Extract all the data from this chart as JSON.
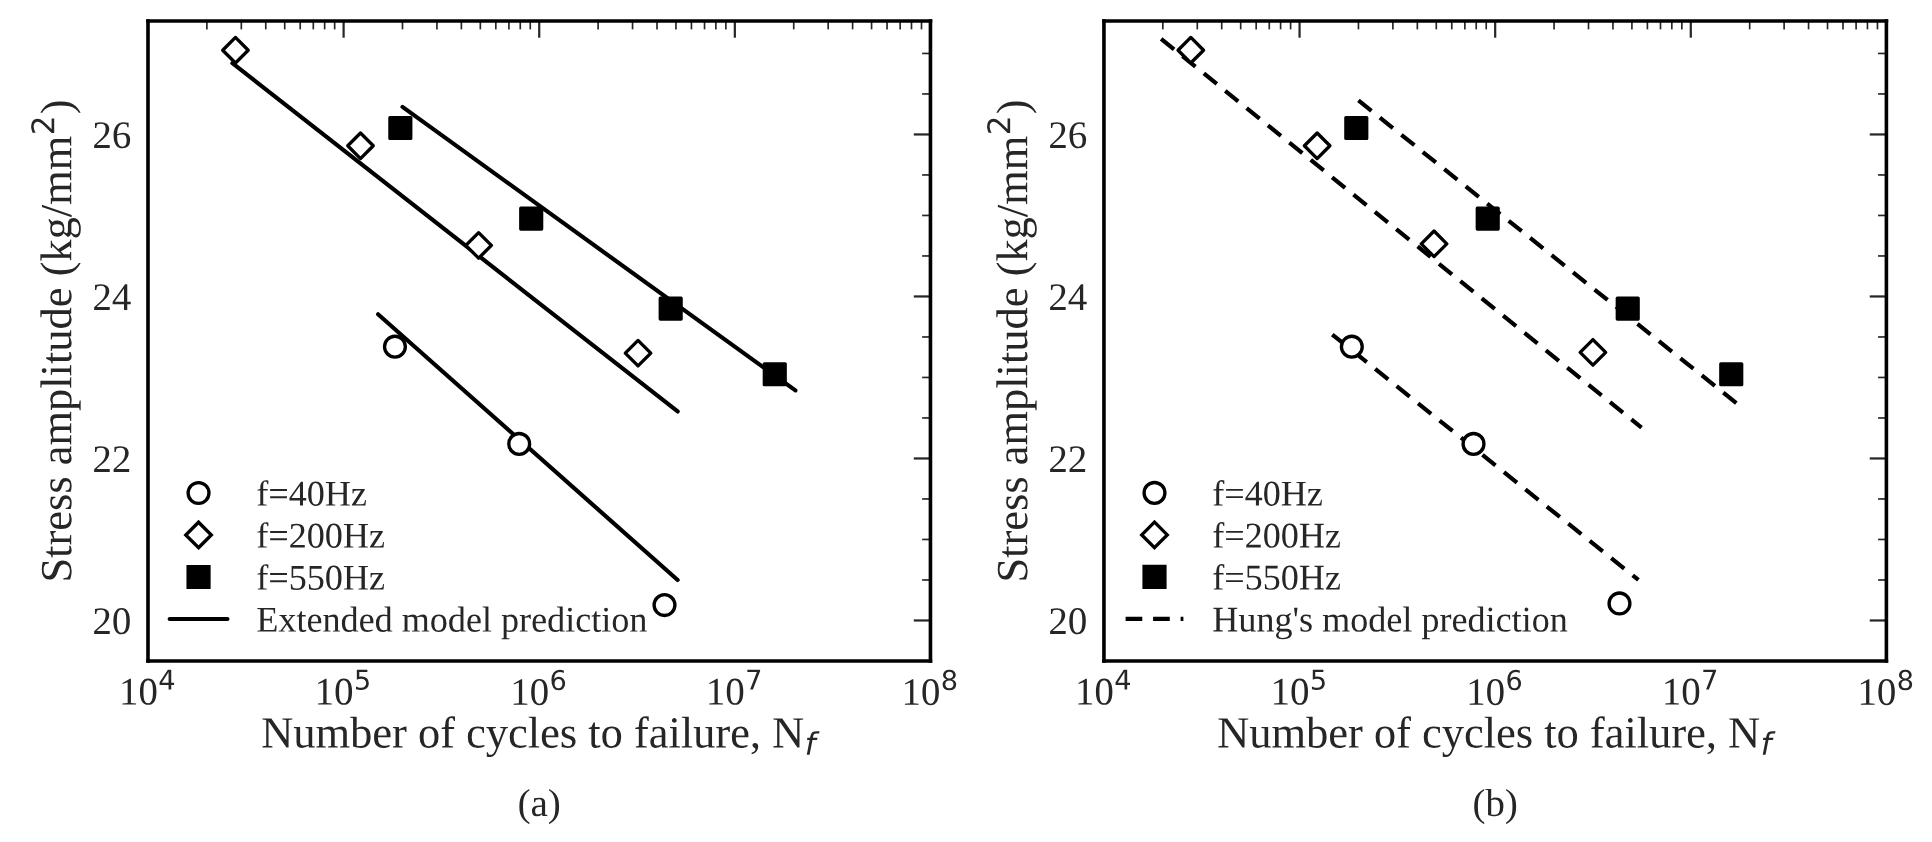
{
  "chart_data": [
    {
      "type": "scatter",
      "title": "(a)",
      "xlabel": "Number of cycles to failure, N$_{f}$",
      "ylabel": "Stress amplitude (kg/mm$^{2}$)",
      "log": "x",
      "xlim": [
        10000,
        100000000
      ],
      "ylim": [
        19.5,
        27.4
      ],
      "xticks": [
        {
          "value": 10000,
          "label": "10$^{4}$"
        },
        {
          "value": 100000,
          "label": "10$^{5}$"
        },
        {
          "value": 1000000,
          "label": "10$^{6}$"
        },
        {
          "value": 10000000,
          "label": "10$^{7}$"
        },
        {
          "value": 100000000,
          "label": "10$^{8}$"
        }
      ],
      "yticks": [
        20,
        22,
        24,
        26
      ],
      "legend": "bottom left",
      "grid": false,
      "series": [
        {
          "name": "f=40Hz",
          "marker": "circle",
          "color": "#000000",
          "x": [
            183000,
            790000,
            4370000
          ],
          "values": [
            23.38,
            22.18,
            20.19
          ]
        },
        {
          "name": "f=200Hz",
          "marker": "diamond",
          "color": "#000000",
          "x": [
            28000,
            122000,
            490000,
            3200000
          ],
          "values": [
            27.04,
            25.86,
            24.63,
            23.3
          ]
        },
        {
          "name": "f=550Hz",
          "marker": "square",
          "color": "#000000",
          "x": [
            195000,
            910000,
            4700000,
            16000000
          ],
          "values": [
            26.08,
            24.96,
            23.85,
            23.04
          ]
        },
        {
          "name": "Extended model prediction",
          "type": "line",
          "line_style": "solid",
          "color": "#000000",
          "x": [
            150000,
            5100000
          ],
          "values": [
            23.78,
            20.5
          ]
        },
        {
          "type": "line",
          "line_style": "solid",
          "color": "#000000",
          "x": [
            27000,
            5100000
          ],
          "values": [
            26.88,
            22.58
          ]
        },
        {
          "type": "line",
          "line_style": "solid",
          "color": "#000000",
          "x": [
            200000,
            20400000
          ],
          "values": [
            26.34,
            22.84
          ]
        }
      ]
    },
    {
      "type": "scatter",
      "title": "(b)",
      "xlabel": "Number of cycles to failure, N$_{f}$",
      "ylabel": "Stress amplitude (kg/mm$^{2}$)",
      "log": "x",
      "xlim": [
        10000,
        100000000
      ],
      "ylim": [
        19.5,
        27.4
      ],
      "xticks": [
        {
          "value": 10000,
          "label": "10$^{4}$"
        },
        {
          "value": 100000,
          "label": "10$^{5}$"
        },
        {
          "value": 1000000,
          "label": "10$^{6}$"
        },
        {
          "value": 10000000,
          "label": "10$^{7}$"
        },
        {
          "value": 100000000,
          "label": "10$^{8}$"
        }
      ],
      "yticks": [
        20,
        22,
        24,
        26
      ],
      "legend": "bottom left",
      "grid": false,
      "series": [
        {
          "name": "f=40Hz",
          "marker": "circle",
          "color": "#000000",
          "x": [
            185000,
            775000,
            4320000
          ],
          "values": [
            23.38,
            22.18,
            20.21
          ]
        },
        {
          "name": "f=200Hz",
          "marker": "diamond",
          "color": "#000000",
          "x": [
            27800,
            123000,
            487000,
            3160000
          ],
          "values": [
            27.04,
            25.86,
            24.65,
            23.31
          ]
        },
        {
          "name": "f=550Hz",
          "marker": "square",
          "color": "#000000",
          "x": [
            195000,
            916000,
            4760000,
            16100000
          ],
          "values": [
            26.08,
            24.96,
            23.85,
            23.04
          ]
        },
        {
          "name": "Hung's model prediction",
          "type": "line",
          "line_style": "dashed",
          "color": "#000000",
          "x": [
            147000,
            5400000
          ],
          "values": [
            23.53,
            20.5
          ]
        },
        {
          "type": "line",
          "line_style": "dashed",
          "color": "#000000",
          "x": [
            19600,
            5600000
          ],
          "values": [
            27.18,
            22.38
          ]
        },
        {
          "type": "line",
          "line_style": "dashed",
          "color": "#000000",
          "x": [
            200000,
            18000000
          ],
          "values": [
            26.42,
            22.64
          ]
        }
      ]
    }
  ]
}
